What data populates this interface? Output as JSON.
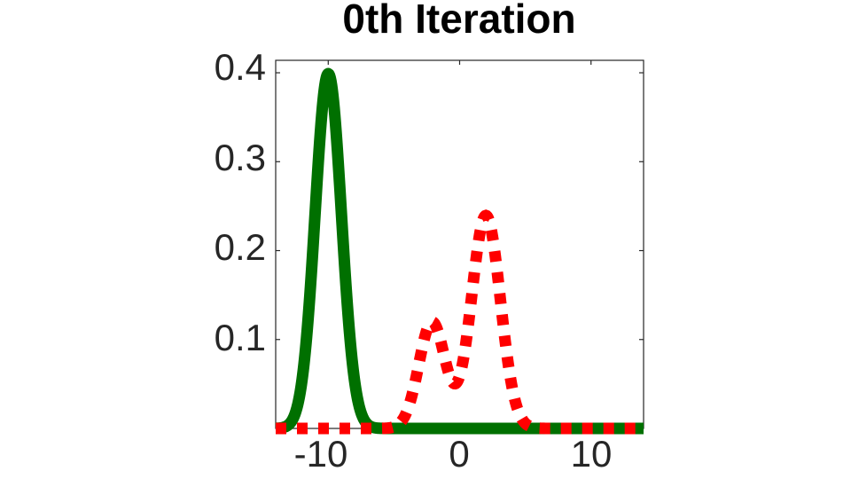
{
  "chart_data": {
    "type": "line",
    "title": "0th Iteration",
    "xlabel": "",
    "ylabel": "",
    "xlim": [
      -14,
      14
    ],
    "ylim": [
      0,
      0.414
    ],
    "grid": false,
    "legend": null,
    "x_ticks": [
      -10,
      0,
      10
    ],
    "x_tick_labels": [
      "-10",
      "0",
      "10"
    ],
    "y_ticks": [
      0.1,
      0.2,
      0.3,
      0.4
    ],
    "y_tick_labels": [
      "0.1",
      "0.2",
      "0.3",
      "0.4"
    ],
    "series": [
      {
        "name": "green-solid",
        "style": "solid",
        "color": "#007000",
        "description": "Gaussian centered at -10, sigma ~1, peak ~0.40",
        "components": [
          {
            "mu": -10,
            "sigma": 1.0,
            "weight": 1.0
          }
        ],
        "key_points": [
          [
            -14,
            0.0
          ],
          [
            -12,
            0.054
          ],
          [
            -11,
            0.242
          ],
          [
            -10,
            0.399
          ],
          [
            -9,
            0.242
          ],
          [
            -8,
            0.054
          ],
          [
            -7,
            0.004
          ],
          [
            -6,
            0.0
          ],
          [
            14,
            0.0
          ]
        ]
      },
      {
        "name": "red-dotted",
        "style": "dotted",
        "color": "#ff0000",
        "description": "Bimodal mixture: small bump near -2, larger peak near +2",
        "components": [
          {
            "mu": -2.1,
            "sigma": 1.0,
            "weight": 0.3
          },
          {
            "mu": 2.0,
            "sigma": 1.1,
            "weight": 0.66
          }
        ],
        "key_points": [
          [
            -14,
            0.0
          ],
          [
            -5,
            0.002
          ],
          [
            -4,
            0.02
          ],
          [
            -3,
            0.08
          ],
          [
            -2.1,
            0.125
          ],
          [
            -0.4,
            0.062
          ],
          [
            0.5,
            0.12
          ],
          [
            2.0,
            0.24
          ],
          [
            3,
            0.16
          ],
          [
            4,
            0.05
          ],
          [
            5,
            0.006
          ],
          [
            6,
            0.0
          ],
          [
            14,
            0.0
          ]
        ]
      }
    ]
  },
  "labels": {
    "title": "0th Iteration",
    "yticks": [
      "0.4",
      "0.3",
      "0.2",
      "0.1"
    ],
    "xticks": [
      "-10",
      "0",
      "10"
    ]
  },
  "colors": {
    "green": "#007000",
    "red": "#ff0000",
    "axis": "#262626"
  }
}
